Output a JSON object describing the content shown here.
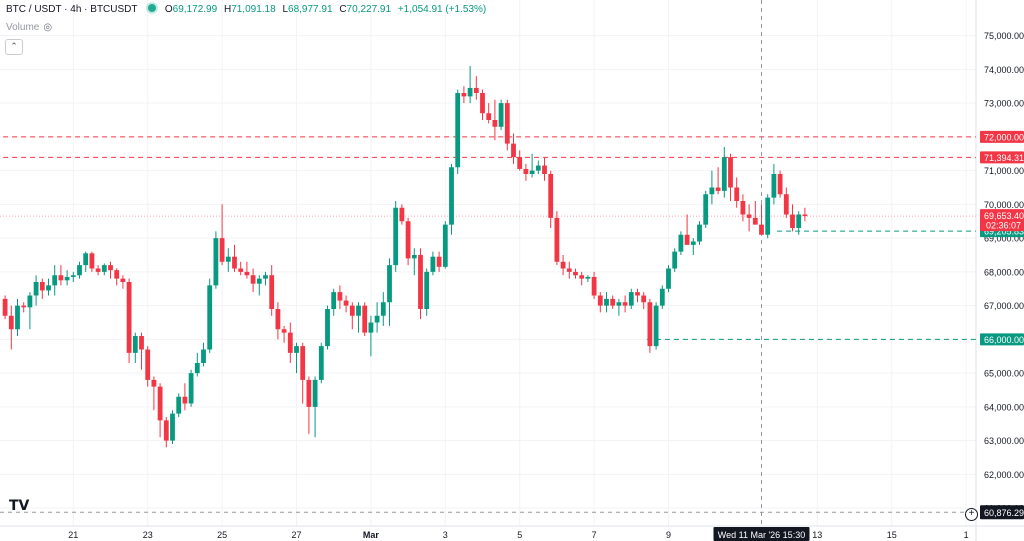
{
  "header": {
    "symbol": "BTC / USDT · 4h · BTCUSDT",
    "o_label": "O",
    "o_value": "69,172.99",
    "h_label": "H",
    "h_value": "71,091.18",
    "l_label": "L",
    "l_value": "68,977.91",
    "c_label": "C",
    "c_value": "70,227.91",
    "change": "+1,054.91 (+1.53%)"
  },
  "volume_label": "Volume",
  "icons": {
    "visibility": "eye-icon",
    "collapse": "chevron-up-icon",
    "logo": "tradingview-logo",
    "add": "plus-circle-icon"
  },
  "colors": {
    "up": "#089981",
    "down": "#f23645",
    "grid": "#f2f3f5",
    "axis_text": "#131722"
  },
  "chart_data": {
    "type": "candlestick",
    "ylim": [
      60500,
      75700
    ],
    "y_ticks": [
      61000,
      62000,
      63000,
      64000,
      65000,
      66000,
      67000,
      68000,
      69000,
      70000,
      71000,
      72000,
      73000,
      74000,
      75000
    ],
    "y_tick_labels": [
      "61,000.00",
      "62,000.00",
      "63,000.00",
      "64,000.00",
      "65,000.00",
      "66,000.00",
      "67,000.00",
      "68,000.00",
      "69,000.00",
      "70,000.00",
      "71,000.00",
      "72,000.00",
      "73,000.00",
      "74,000.00",
      "75,000.00"
    ],
    "x_ticks": [
      {
        "label": "21",
        "idx": 11
      },
      {
        "label": "23",
        "idx": 23
      },
      {
        "label": "25",
        "idx": 35
      },
      {
        "label": "27",
        "idx": 47
      },
      {
        "label": "Mar",
        "idx": 59
      },
      {
        "label": "3",
        "idx": 71
      },
      {
        "label": "5",
        "idx": 83
      },
      {
        "label": "7",
        "idx": 95
      },
      {
        "label": "9",
        "idx": 107
      },
      {
        "label": "13",
        "idx": 131
      },
      {
        "label": "15",
        "idx": 143
      },
      {
        "label": "1",
        "idx": 155
      }
    ],
    "crosshair": {
      "idx": 122,
      "label": "Wed 11 Mar '26   15:30",
      "price_label": "60,876.29",
      "price": 60876.29
    },
    "horizontal_lines": [
      {
        "price": 72000,
        "label": "72,000.00",
        "color": "#f23645",
        "style": "dashed",
        "from_idx": 0
      },
      {
        "price": 71394.31,
        "label": "71,394.31",
        "color": "#f23645",
        "style": "dashed",
        "from_idx": 0
      },
      {
        "price": 69205.83,
        "label": "69,205.83",
        "color": "#089981",
        "style": "dashed",
        "from_idx": 125
      },
      {
        "price": 66000,
        "label": "66,000.00",
        "color": "#089981",
        "style": "dashed",
        "from_idx": 104
      }
    ],
    "last_price": {
      "price": 69653.4,
      "label": "69,653.40",
      "countdown": "02:36:07"
    },
    "candles": [
      [
        67200,
        67300,
        66600,
        66700
      ],
      [
        66700,
        67000,
        65700,
        66300
      ],
      [
        66300,
        67200,
        66100,
        67000
      ],
      [
        67000,
        67100,
        66800,
        66950
      ],
      [
        66950,
        67400,
        66300,
        67300
      ],
      [
        67300,
        67900,
        67000,
        67700
      ],
      [
        67700,
        67800,
        67200,
        67450
      ],
      [
        67450,
        67800,
        67300,
        67600
      ],
      [
        67600,
        68200,
        67300,
        67900
      ],
      [
        67900,
        68200,
        67600,
        67750
      ],
      [
        67750,
        68050,
        67600,
        67850
      ],
      [
        67850,
        68000,
        67700,
        67900
      ],
      [
        67900,
        68300,
        67800,
        68200
      ],
      [
        68200,
        68600,
        68000,
        68550
      ],
      [
        68550,
        68600,
        68000,
        68100
      ],
      [
        68100,
        68200,
        67900,
        68000
      ],
      [
        68000,
        68250,
        67900,
        68200
      ],
      [
        68200,
        68300,
        67800,
        68050
      ],
      [
        68050,
        68100,
        67600,
        67800
      ],
      [
        67800,
        67900,
        67500,
        67700
      ],
      [
        67700,
        67800,
        65300,
        65600
      ],
      [
        65600,
        66200,
        65300,
        66100
      ],
      [
        66100,
        66200,
        65100,
        65700
      ],
      [
        65700,
        65800,
        64600,
        64800
      ],
      [
        64800,
        64900,
        63900,
        64600
      ],
      [
        64600,
        64700,
        63100,
        63600
      ],
      [
        63600,
        63700,
        62800,
        63000
      ],
      [
        63000,
        63900,
        62900,
        63800
      ],
      [
        63800,
        64400,
        63700,
        64300
      ],
      [
        64300,
        64700,
        63900,
        64100
      ],
      [
        64100,
        65100,
        64000,
        65000
      ],
      [
        65000,
        65600,
        64900,
        65300
      ],
      [
        65300,
        65900,
        65200,
        65700
      ],
      [
        65700,
        67800,
        65600,
        67600
      ],
      [
        67600,
        69200,
        67500,
        69000
      ],
      [
        69000,
        70000,
        68200,
        68300
      ],
      [
        68300,
        68700,
        68000,
        68450
      ],
      [
        68450,
        68800,
        68000,
        68100
      ],
      [
        68100,
        68300,
        67900,
        68000
      ],
      [
        68000,
        68300,
        67800,
        67900
      ],
      [
        67900,
        68100,
        67400,
        67650
      ],
      [
        67650,
        67900,
        67300,
        67800
      ],
      [
        67800,
        68000,
        67600,
        67900
      ],
      [
        67900,
        68200,
        66700,
        66900
      ],
      [
        66900,
        67100,
        66000,
        66300
      ],
      [
        66300,
        66400,
        65900,
        66200
      ],
      [
        66200,
        66500,
        65300,
        65600
      ],
      [
        65600,
        65900,
        65000,
        65800
      ],
      [
        65800,
        65900,
        64100,
        64800
      ],
      [
        64800,
        64900,
        63200,
        64000
      ],
      [
        64000,
        64900,
        63100,
        64800
      ],
      [
        64800,
        65900,
        64700,
        65800
      ],
      [
        65800,
        67000,
        65700,
        66900
      ],
      [
        66900,
        67500,
        66700,
        67400
      ],
      [
        67400,
        67600,
        66900,
        67150
      ],
      [
        67150,
        67300,
        66800,
        67000
      ],
      [
        67000,
        67100,
        66300,
        66700
      ],
      [
        66700,
        67100,
        66200,
        67000
      ],
      [
        67000,
        67100,
        66100,
        66200
      ],
      [
        66200,
        66700,
        65500,
        66500
      ],
      [
        66500,
        67100,
        66200,
        66700
      ],
      [
        66700,
        67400,
        66400,
        67100
      ],
      [
        67100,
        68400,
        66400,
        68200
      ],
      [
        68200,
        70100,
        68000,
        69900
      ],
      [
        69900,
        70000,
        69400,
        69500
      ],
      [
        69500,
        69600,
        68200,
        68400
      ],
      [
        68400,
        68700,
        67900,
        68500
      ],
      [
        68500,
        68700,
        66600,
        66900
      ],
      [
        66900,
        68100,
        66700,
        68000
      ],
      [
        68000,
        68600,
        67900,
        68450
      ],
      [
        68450,
        68600,
        68000,
        68150
      ],
      [
        68150,
        69500,
        68100,
        69400
      ],
      [
        69400,
        71200,
        69100,
        71100
      ],
      [
        71100,
        73400,
        70900,
        73300
      ],
      [
        73300,
        73500,
        73000,
        73200
      ],
      [
        73200,
        74100,
        73000,
        73450
      ],
      [
        73450,
        73800,
        73100,
        73300
      ],
      [
        73300,
        73400,
        72500,
        72700
      ],
      [
        72700,
        73000,
        72400,
        72500
      ],
      [
        72500,
        73100,
        71900,
        72300
      ],
      [
        72300,
        73100,
        72200,
        73000
      ],
      [
        73000,
        73100,
        71600,
        71800
      ],
      [
        71800,
        72100,
        71200,
        71400
      ],
      [
        71400,
        71600,
        71000,
        71050
      ],
      [
        71050,
        71200,
        70700,
        70900
      ],
      [
        70900,
        71500,
        70800,
        71000
      ],
      [
        71000,
        71300,
        70900,
        71150
      ],
      [
        71150,
        71400,
        70700,
        70900
      ],
      [
        70900,
        71000,
        69300,
        69600
      ],
      [
        69600,
        69800,
        68200,
        68300
      ],
      [
        68300,
        68500,
        67900,
        68100
      ],
      [
        68100,
        68300,
        67800,
        68000
      ],
      [
        68000,
        68100,
        67800,
        67900
      ],
      [
        67900,
        68000,
        67600,
        67800
      ],
      [
        67800,
        67900,
        67700,
        67850
      ],
      [
        67850,
        68000,
        67200,
        67300
      ],
      [
        67300,
        67400,
        66800,
        67000
      ],
      [
        67000,
        67400,
        66800,
        67200
      ],
      [
        67200,
        67300,
        66900,
        67000
      ],
      [
        67000,
        67200,
        66700,
        67100
      ],
      [
        67100,
        67300,
        66800,
        67000
      ],
      [
        67000,
        67500,
        66900,
        67400
      ],
      [
        67400,
        67500,
        67100,
        67300
      ],
      [
        67300,
        67400,
        66900,
        67100
      ],
      [
        67100,
        67200,
        65600,
        65800
      ],
      [
        65800,
        67100,
        65700,
        67000
      ],
      [
        67000,
        67600,
        66900,
        67500
      ],
      [
        67500,
        68200,
        67400,
        68100
      ],
      [
        68100,
        68700,
        68000,
        68600
      ],
      [
        68600,
        69200,
        68500,
        69100
      ],
      [
        69100,
        69700,
        68900,
        68800
      ],
      [
        68800,
        69000,
        68500,
        68900
      ],
      [
        68900,
        69500,
        68800,
        69400
      ],
      [
        69400,
        70400,
        69300,
        70300
      ],
      [
        70300,
        71000,
        70000,
        70500
      ],
      [
        70500,
        71100,
        70300,
        70400
      ],
      [
        70400,
        71700,
        70200,
        71400
      ],
      [
        71400,
        71500,
        70100,
        70500
      ],
      [
        70500,
        70800,
        69900,
        70100
      ],
      [
        70100,
        70300,
        69500,
        69700
      ],
      [
        69700,
        70000,
        69200,
        69600
      ],
      [
        69600,
        70100,
        69400,
        69400
      ],
      [
        69400,
        70000,
        69200,
        69100
      ],
      [
        69100,
        70300,
        69000,
        70200
      ],
      [
        70200,
        71200,
        70000,
        70900
      ],
      [
        70900,
        71000,
        70200,
        70300
      ],
      [
        70300,
        70500,
        69600,
        69700
      ],
      [
        69700,
        70000,
        69200,
        69300
      ],
      [
        69300,
        69800,
        69100,
        69700
      ],
      [
        69700,
        69900,
        69500,
        69653.4
      ]
    ]
  }
}
